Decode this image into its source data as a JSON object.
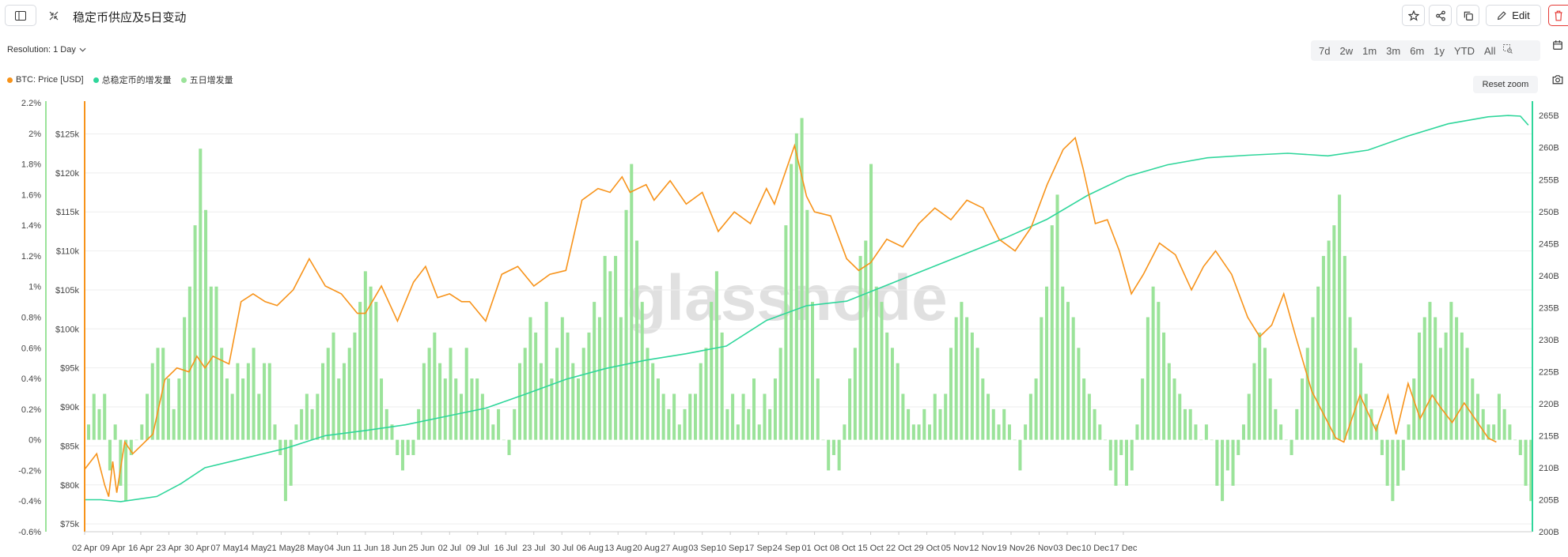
{
  "header": {
    "title": "稳定币供应及5日变动",
    "edit_label": "Edit",
    "resolution_label": "Resolution: 1 Day"
  },
  "toolbar": {
    "ranges": [
      "7d",
      "2w",
      "1m",
      "3m",
      "6m",
      "1y",
      "YTD",
      "All"
    ],
    "reset_zoom": "Reset zoom"
  },
  "legend": [
    {
      "label": "BTC: Price [USD]",
      "color": "#f7931a"
    },
    {
      "label": "总稳定币的增发量",
      "color": "#2fd69b"
    },
    {
      "label": "五日增发量",
      "color": "#9be39a"
    }
  ],
  "watermark": "glassnode",
  "chart_data": {
    "type": "line+bar",
    "x_ticks": [
      "02 Apr",
      "09 Apr",
      "16 Apr",
      "23 Apr",
      "30 Apr",
      "07 May",
      "14 May",
      "21 May",
      "28 May",
      "04 Jun",
      "11 Jun",
      "18 Jun",
      "25 Jun",
      "02 Jul",
      "09 Jul",
      "16 Jul",
      "23 Jul",
      "30 Jul",
      "06 Aug",
      "13 Aug",
      "20 Aug",
      "27 Aug",
      "03 Sep",
      "10 Sep",
      "17 Sep",
      "24 Sep",
      "01 Oct",
      "08 Oct",
      "15 Oct",
      "22 Oct",
      "29 Oct",
      "05 Nov",
      "12 Nov",
      "19 Nov",
      "26 Nov",
      "03 Dec",
      "10 Dec",
      "17 Dec"
    ],
    "left_axis_pct": {
      "ticks": [
        "2.2%",
        "2%",
        "1.8%",
        "1.6%",
        "1.4%",
        "1.2%",
        "1%",
        "0.8%",
        "0.6%",
        "0.4%",
        "0.2%",
        "0%",
        "-0.2%",
        "-0.4%",
        "-0.6%"
      ],
      "range": [
        -0.6,
        2.2
      ]
    },
    "price_axis": {
      "ticks": [
        "$125k",
        "$120k",
        "$115k",
        "$110k",
        "$105k",
        "$100k",
        "$95k",
        "$90k",
        "$85k",
        "$80k",
        "$75k"
      ],
      "range": [
        74000,
        129000
      ]
    },
    "right_axis": {
      "ticks": [
        "265B",
        "260B",
        "255B",
        "250B",
        "245B",
        "240B",
        "235B",
        "230B",
        "225B",
        "220B",
        "215B",
        "210B",
        "205B",
        "200B"
      ],
      "range": [
        200,
        267
      ]
    },
    "series": [
      {
        "name": "BTC: Price [USD]",
        "points": [
          [
            0,
            82000
          ],
          [
            3,
            84000
          ],
          [
            5,
            80000
          ],
          [
            6,
            78500
          ],
          [
            7,
            83000
          ],
          [
            8,
            79000
          ],
          [
            10,
            85500
          ],
          [
            12,
            84000
          ],
          [
            14,
            85000
          ],
          [
            17,
            86500
          ],
          [
            20,
            93500
          ],
          [
            23,
            95000
          ],
          [
            26,
            94500
          ],
          [
            28,
            96500
          ],
          [
            30,
            95000
          ],
          [
            32,
            96500
          ],
          [
            36,
            95500
          ],
          [
            39,
            103500
          ],
          [
            42,
            104500
          ],
          [
            45,
            103500
          ],
          [
            48,
            103000
          ],
          [
            52,
            105000
          ],
          [
            56,
            109000
          ],
          [
            60,
            105500
          ],
          [
            64,
            104500
          ],
          [
            68,
            102000
          ],
          [
            70,
            102000
          ],
          [
            74,
            105500
          ],
          [
            78,
            101000
          ],
          [
            82,
            106000
          ],
          [
            85,
            108000
          ],
          [
            88,
            104000
          ],
          [
            91,
            104500
          ],
          [
            94,
            103500
          ],
          [
            96,
            103500
          ],
          [
            100,
            101000
          ],
          [
            104,
            107000
          ],
          [
            108,
            108000
          ],
          [
            112,
            105500
          ],
          [
            116,
            107000
          ],
          [
            120,
            107500
          ],
          [
            124,
            116500
          ],
          [
            128,
            118000
          ],
          [
            131,
            117500
          ],
          [
            134,
            119500
          ],
          [
            136,
            117500
          ],
          [
            140,
            118500
          ],
          [
            142,
            116500
          ],
          [
            146,
            119000
          ],
          [
            150,
            116000
          ],
          [
            154,
            117500
          ],
          [
            158,
            112500
          ],
          [
            162,
            115000
          ],
          [
            166,
            113500
          ],
          [
            170,
            118000
          ],
          [
            172,
            116000
          ],
          [
            174,
            119000
          ],
          [
            177,
            123500
          ],
          [
            180,
            117000
          ],
          [
            182,
            115000
          ],
          [
            186,
            114500
          ],
          [
            190,
            109000
          ],
          [
            193,
            107500
          ],
          [
            196,
            108500
          ],
          [
            200,
            111500
          ],
          [
            204,
            110500
          ],
          [
            208,
            113500
          ],
          [
            212,
            115500
          ],
          [
            216,
            114000
          ],
          [
            220,
            116500
          ],
          [
            224,
            115500
          ],
          [
            228,
            111500
          ],
          [
            232,
            110000
          ],
          [
            236,
            113000
          ],
          [
            240,
            118500
          ],
          [
            244,
            123000
          ],
          [
            247,
            124500
          ],
          [
            249,
            120500
          ],
          [
            252,
            113500
          ],
          [
            255,
            114000
          ],
          [
            258,
            110000
          ],
          [
            261,
            104500
          ],
          [
            264,
            107000
          ],
          [
            268,
            111000
          ],
          [
            272,
            109500
          ],
          [
            276,
            105000
          ],
          [
            279,
            108000
          ],
          [
            282,
            110000
          ],
          [
            286,
            107000
          ],
          [
            290,
            101500
          ],
          [
            293,
            99000
          ],
          [
            296,
            100500
          ],
          [
            299,
            104500
          ],
          [
            302,
            99000
          ],
          [
            306,
            92000
          ],
          [
            308,
            90000
          ],
          [
            312,
            86000
          ],
          [
            314,
            85500
          ],
          [
            316,
            88500
          ],
          [
            318,
            91500
          ],
          [
            322,
            87000
          ],
          [
            325,
            91500
          ],
          [
            327,
            86500
          ],
          [
            330,
            93000
          ],
          [
            333,
            88500
          ],
          [
            336,
            91500
          ],
          [
            338,
            90000
          ],
          [
            341,
            88000
          ],
          [
            344,
            90500
          ],
          [
            348,
            87500
          ],
          [
            350,
            86000
          ],
          [
            352,
            85500
          ]
        ]
      },
      {
        "name": "总稳定币的增发量",
        "points": [
          [
            0,
            205000
          ],
          [
            4,
            205000
          ],
          [
            9,
            204700
          ],
          [
            18,
            205500
          ],
          [
            24,
            207500
          ],
          [
            30,
            210000
          ],
          [
            40,
            211500
          ],
          [
            50,
            213000
          ],
          [
            60,
            215000
          ],
          [
            70,
            215800
          ],
          [
            80,
            216700
          ],
          [
            90,
            218000
          ],
          [
            100,
            219300
          ],
          [
            110,
            221500
          ],
          [
            120,
            223800
          ],
          [
            130,
            225500
          ],
          [
            140,
            226800
          ],
          [
            150,
            227800
          ],
          [
            160,
            229000
          ],
          [
            170,
            233000
          ],
          [
            180,
            235300
          ],
          [
            190,
            236000
          ],
          [
            200,
            238500
          ],
          [
            210,
            241000
          ],
          [
            220,
            243500
          ],
          [
            230,
            246000
          ],
          [
            240,
            248800
          ],
          [
            250,
            252500
          ],
          [
            260,
            255500
          ],
          [
            270,
            257300
          ],
          [
            280,
            258400
          ],
          [
            290,
            258800
          ],
          [
            300,
            259100
          ],
          [
            310,
            258700
          ],
          [
            320,
            259600
          ],
          [
            330,
            261800
          ],
          [
            340,
            263700
          ],
          [
            350,
            264800
          ],
          [
            355,
            265000
          ],
          [
            358,
            264900
          ],
          [
            360,
            263500
          ]
        ]
      },
      {
        "name": "五日增发量",
        "values": [
          0.1,
          0.3,
          0.2,
          0.3,
          -0.2,
          0.1,
          -0.3,
          -0.4,
          -0.1,
          0.0,
          0.1,
          0.3,
          0.5,
          0.6,
          0.6,
          0.4,
          0.2,
          0.4,
          0.8,
          1.0,
          1.4,
          1.9,
          1.5,
          1.0,
          1.0,
          0.6,
          0.4,
          0.3,
          0.5,
          0.4,
          0.5,
          0.6,
          0.3,
          0.5,
          0.5,
          0.1,
          -0.1,
          -0.4,
          -0.3,
          0.1,
          0.2,
          0.3,
          0.2,
          0.3,
          0.5,
          0.6,
          0.7,
          0.4,
          0.5,
          0.6,
          0.7,
          0.9,
          1.1,
          1.0,
          0.9,
          0.4,
          0.2,
          0.1,
          -0.1,
          -0.2,
          -0.1,
          -0.1,
          0.2,
          0.5,
          0.6,
          0.7,
          0.5,
          0.4,
          0.6,
          0.4,
          0.3,
          0.6,
          0.4,
          0.4,
          0.3,
          0.2,
          0.1,
          0.2,
          0.0,
          -0.1,
          0.2,
          0.5,
          0.6,
          0.8,
          0.7,
          0.5,
          0.9,
          0.4,
          0.6,
          0.8,
          0.7,
          0.5,
          0.4,
          0.6,
          0.7,
          0.9,
          0.8,
          1.2,
          1.1,
          1.2,
          0.8,
          1.5,
          1.8,
          1.3,
          0.9,
          0.6,
          0.5,
          0.4,
          0.3,
          0.2,
          0.3,
          0.1,
          0.2,
          0.3,
          0.3,
          0.5,
          0.6,
          0.9,
          1.1,
          0.7,
          0.2,
          0.3,
          0.1,
          0.3,
          0.2,
          0.4,
          0.1,
          0.3,
          0.2,
          0.4,
          0.6,
          1.4,
          1.8,
          2.0,
          2.1,
          1.5,
          0.9,
          0.4,
          0.0,
          -0.2,
          -0.1,
          -0.2,
          0.1,
          0.4,
          0.6,
          1.2,
          1.3,
          1.8,
          1.0,
          0.9,
          0.7,
          0.6,
          0.5,
          0.3,
          0.2,
          0.1,
          0.1,
          0.2,
          0.1,
          0.3,
          0.2,
          0.3,
          0.6,
          0.8,
          0.9,
          0.8,
          0.7,
          0.6,
          0.4,
          0.3,
          0.2,
          0.1,
          0.2,
          0.1,
          0.0,
          -0.2,
          0.1,
          0.3,
          0.4,
          0.8,
          1.0,
          1.4,
          1.6,
          1.0,
          0.9,
          0.8,
          0.6,
          0.4,
          0.3,
          0.2,
          0.1,
          0.0,
          -0.2,
          -0.3,
          -0.1,
          -0.3,
          -0.2,
          0.1,
          0.4,
          0.8,
          1.0,
          0.9,
          0.7,
          0.5,
          0.4,
          0.3,
          0.2,
          0.2,
          0.1,
          0.0,
          0.1,
          0.0,
          -0.3,
          -0.4,
          -0.2,
          -0.3,
          -0.1,
          0.1,
          0.3,
          0.5,
          0.7,
          0.6,
          0.4,
          0.2,
          0.1,
          0.0,
          -0.1,
          0.2,
          0.4,
          0.6,
          0.8,
          1.0,
          1.2,
          1.3,
          1.4,
          1.6,
          1.2,
          0.8,
          0.6,
          0.5,
          0.3,
          0.2,
          0.1,
          -0.1,
          -0.3,
          -0.4,
          -0.3,
          -0.2,
          0.1,
          0.4,
          0.7,
          0.8,
          0.9,
          0.8,
          0.6,
          0.7,
          0.9,
          0.8,
          0.7,
          0.6,
          0.4,
          0.3,
          0.2,
          0.1,
          0.1,
          0.3,
          0.2,
          0.1,
          0.0,
          -0.1,
          -0.3,
          -0.4
        ]
      }
    ]
  }
}
